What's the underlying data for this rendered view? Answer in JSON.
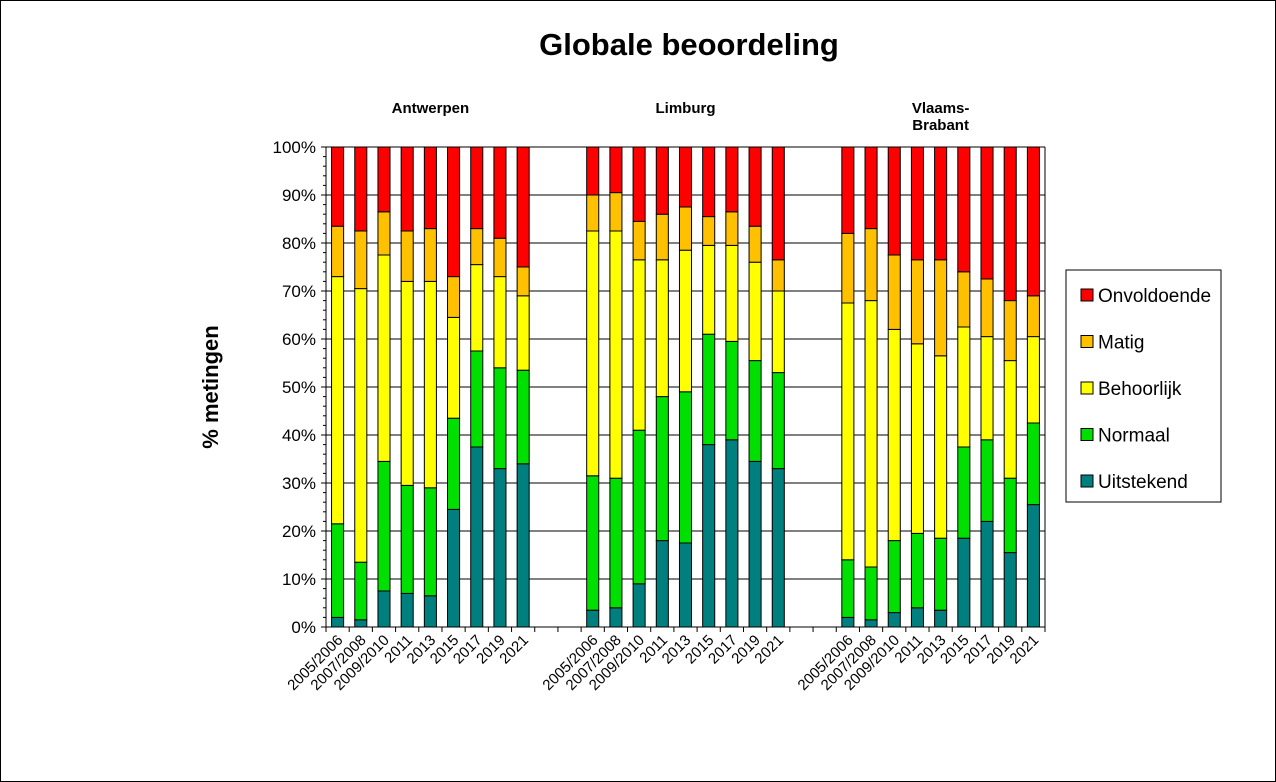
{
  "chart_data": {
    "type": "bar",
    "stacked": true,
    "title": "Globale beoordeling",
    "ylabel": "% metingen",
    "ylim": [
      0,
      100
    ],
    "yticks": [
      "0%",
      "10%",
      "20%",
      "30%",
      "40%",
      "50%",
      "60%",
      "70%",
      "80%",
      "90%",
      "100%"
    ],
    "grid": true,
    "legend_position": "right",
    "categories": [
      "2005/2006",
      "2007/2008",
      "2009/2010",
      "2011",
      "2013",
      "2015",
      "2017",
      "2019",
      "2021"
    ],
    "groups": [
      {
        "name": "Antwerpen",
        "label_lines": [
          "Antwerpen"
        ],
        "series": [
          {
            "name": "Uitstekend",
            "values": [
              2,
              1.5,
              7.5,
              7,
              6.5,
              24.5,
              37.5,
              33,
              34
            ]
          },
          {
            "name": "Normaal",
            "values": [
              19.5,
              12,
              27,
              22.5,
              22.5,
              19,
              20,
              21,
              19.5
            ]
          },
          {
            "name": "Behoorlijk",
            "values": [
              51.5,
              57,
              43,
              42.5,
              43,
              21,
              18,
              19,
              15.5
            ]
          },
          {
            "name": "Matig",
            "values": [
              10.5,
              12,
              9,
              10.5,
              11,
              8.5,
              7.5,
              8,
              6
            ]
          },
          {
            "name": "Onvoldoende",
            "values": [
              16.5,
              17.5,
              13.5,
              17.5,
              17,
              27,
              17,
              19,
              25
            ]
          }
        ]
      },
      {
        "name": "Limburg",
        "label_lines": [
          "Limburg"
        ],
        "series": [
          {
            "name": "Uitstekend",
            "values": [
              3.5,
              4,
              9,
              18,
              17.5,
              38,
              39,
              34.5,
              33
            ]
          },
          {
            "name": "Normaal",
            "values": [
              28,
              27,
              32,
              30,
              31.5,
              23,
              20.5,
              21,
              20
            ]
          },
          {
            "name": "Behoorlijk",
            "values": [
              51,
              51.5,
              35.5,
              28.5,
              29.5,
              18.5,
              20,
              20.5,
              17
            ]
          },
          {
            "name": "Matig",
            "values": [
              7.5,
              8,
              8,
              9.5,
              9,
              6,
              7,
              7.5,
              6.5
            ]
          },
          {
            "name": "Onvoldoende",
            "values": [
              10,
              9.5,
              15.5,
              14,
              12.5,
              14.5,
              13.5,
              16.5,
              23.5
            ]
          }
        ]
      },
      {
        "name": "Vlaams-Brabant",
        "label_lines": [
          "Vlaams-",
          "Brabant"
        ],
        "series": [
          {
            "name": "Uitstekend",
            "values": [
              2,
              1.5,
              3,
              4,
              3.5,
              18.5,
              22,
              15.5,
              25.5
            ]
          },
          {
            "name": "Normaal",
            "values": [
              12,
              11,
              15,
              15.5,
              15,
              19,
              17,
              15.5,
              17
            ]
          },
          {
            "name": "Behoorlijk",
            "values": [
              53.5,
              55.5,
              44,
              39.5,
              38,
              25,
              21.5,
              24.5,
              18
            ]
          },
          {
            "name": "Matig",
            "values": [
              14.5,
              15,
              15.5,
              17.5,
              20,
              11.5,
              12,
              12.5,
              8.5
            ]
          },
          {
            "name": "Onvoldoende",
            "values": [
              18,
              17,
              22.5,
              23.5,
              23.5,
              26,
              27.5,
              32,
              31
            ]
          }
        ]
      }
    ],
    "colors": {
      "Uitstekend": "#007f7f",
      "Normaal": "#00e000",
      "Behoorlijk": "#ffff00",
      "Matig": "#ffc000",
      "Onvoldoende": "#ff0000"
    },
    "legend": [
      "Onvoldoende",
      "Matig",
      "Behoorlijk",
      "Normaal",
      "Uitstekend"
    ]
  }
}
